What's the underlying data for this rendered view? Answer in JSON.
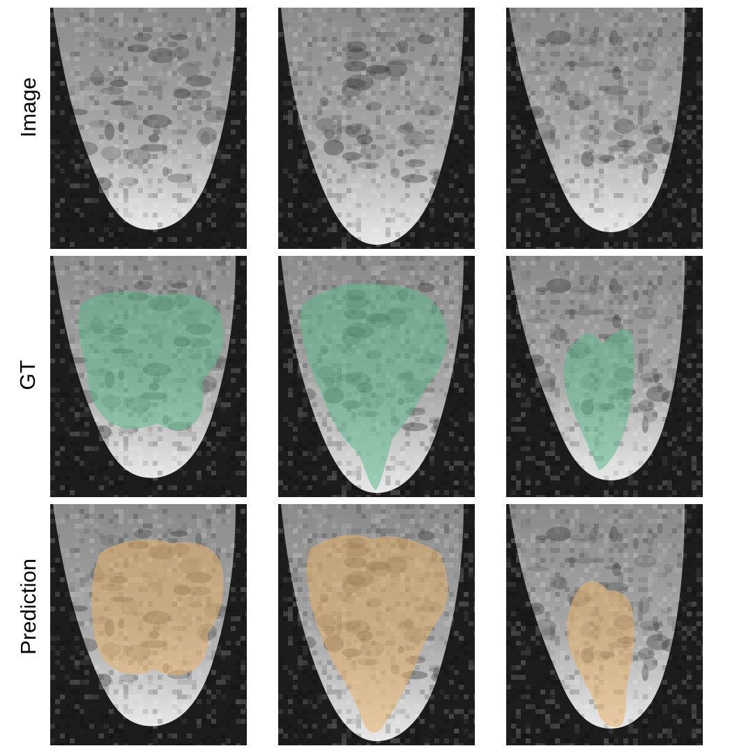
{
  "rows": [
    {
      "key": "image",
      "label": "Image",
      "overlay": null
    },
    {
      "key": "gt",
      "label": "GT",
      "overlay": "#5fb88c"
    },
    {
      "key": "prediction",
      "label": "Prediction",
      "overlay": "#e8b06a"
    }
  ],
  "columns": [
    {
      "key": "case-1"
    },
    {
      "key": "case-2"
    },
    {
      "key": "case-3"
    }
  ],
  "colors": {
    "background": "#ffffff",
    "gt_overlay": "#5fb88c",
    "prediction_overlay": "#e8b06a"
  }
}
